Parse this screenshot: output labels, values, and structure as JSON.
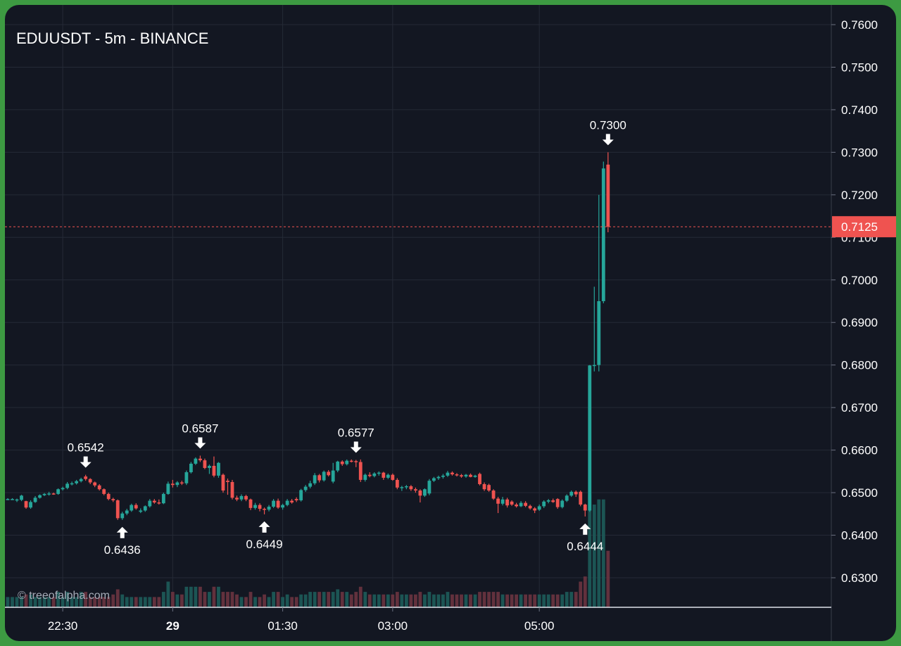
{
  "header": {
    "title": "EDUUSDT - 5m - BINANCE"
  },
  "watermark": "© treeofalpha.com",
  "colors": {
    "background": "#131722",
    "up": "#26a69a",
    "down": "#ef5350",
    "grid": "#252a36",
    "text": "#ffffff",
    "frame": "#3d9a42"
  },
  "chart_data": {
    "type": "candlestick",
    "symbol": "EDUUSDT",
    "interval": "5m",
    "exchange": "BINANCE",
    "ylim": [
      0.6225,
      0.7645
    ],
    "y_ticks": [
      "0.6300",
      "0.6400",
      "0.6500",
      "0.6600",
      "0.6700",
      "0.6800",
      "0.6900",
      "0.7000",
      "0.7100",
      "0.7200",
      "0.7300",
      "0.7400",
      "0.7500",
      "0.7600"
    ],
    "x_ticks": [
      {
        "label": "22:30",
        "bar": 12,
        "bold": false
      },
      {
        "label": "29",
        "bar": 36,
        "bold": true
      },
      {
        "label": "01:30",
        "bar": 60,
        "bold": false
      },
      {
        "label": "03:00",
        "bar": 84,
        "bold": false
      },
      {
        "label": "05:00",
        "bar": 116,
        "bold": false
      }
    ],
    "last_price": {
      "value": 0.7125,
      "label": "0.7125"
    },
    "annotations": [
      {
        "text": "0.6542",
        "bar": 17,
        "price": 0.6542,
        "type": "high"
      },
      {
        "text": "0.6436",
        "bar": 25,
        "price": 0.6436,
        "type": "low"
      },
      {
        "text": "0.6587",
        "bar": 42,
        "price": 0.6587,
        "type": "high"
      },
      {
        "text": "0.6449",
        "bar": 56,
        "price": 0.6449,
        "type": "low"
      },
      {
        "text": "0.6577",
        "bar": 76,
        "price": 0.6577,
        "type": "high"
      },
      {
        "text": "0.6444",
        "bar": 126,
        "price": 0.6444,
        "type": "low"
      },
      {
        "text": "0.7300",
        "bar": 131,
        "price": 0.73,
        "type": "high"
      }
    ],
    "candles": [
      [
        0.6485,
        0.6487,
        0.6483,
        0.6485,
        0.2
      ],
      [
        0.6485,
        0.6487,
        0.6483,
        0.6485,
        0.2
      ],
      [
        0.6482,
        0.6486,
        0.6478,
        0.6484,
        0.2
      ],
      [
        0.6483,
        0.6495,
        0.648,
        0.6493,
        0.2
      ],
      [
        0.648,
        0.6481,
        0.6462,
        0.6465,
        0.25
      ],
      [
        0.6465,
        0.6482,
        0.6462,
        0.6478,
        0.25
      ],
      [
        0.6478,
        0.6492,
        0.6476,
        0.6488,
        0.2
      ],
      [
        0.6488,
        0.6496,
        0.6486,
        0.6494,
        0.2
      ],
      [
        0.6494,
        0.6499,
        0.6492,
        0.6497,
        0.2
      ],
      [
        0.6497,
        0.6502,
        0.6493,
        0.6498,
        0.2
      ],
      [
        0.6498,
        0.65,
        0.6495,
        0.6497,
        0.2
      ],
      [
        0.6497,
        0.651,
        0.6495,
        0.6508,
        0.3
      ],
      [
        0.6508,
        0.6514,
        0.6505,
        0.6511,
        0.2
      ],
      [
        0.6511,
        0.6525,
        0.6508,
        0.6521,
        0.3
      ],
      [
        0.6521,
        0.6526,
        0.6517,
        0.6522,
        0.2
      ],
      [
        0.6522,
        0.653,
        0.6519,
        0.6527,
        0.2
      ],
      [
        0.6527,
        0.6535,
        0.6524,
        0.6532,
        0.3
      ],
      [
        0.6538,
        0.6542,
        0.6528,
        0.6532,
        0.3
      ],
      [
        0.6532,
        0.6534,
        0.652,
        0.6524,
        0.2
      ],
      [
        0.6524,
        0.6526,
        0.6513,
        0.6517,
        0.2
      ],
      [
        0.6517,
        0.652,
        0.6505,
        0.6508,
        0.2
      ],
      [
        0.6508,
        0.651,
        0.6494,
        0.6497,
        0.2
      ],
      [
        0.6497,
        0.65,
        0.6482,
        0.6485,
        0.2
      ],
      [
        0.6485,
        0.6488,
        0.6478,
        0.6482,
        0.25
      ],
      [
        0.6482,
        0.6484,
        0.6436,
        0.644,
        0.35
      ],
      [
        0.644,
        0.6455,
        0.6436,
        0.6451,
        0.25
      ],
      [
        0.6451,
        0.6462,
        0.6447,
        0.6458,
        0.2
      ],
      [
        0.6458,
        0.6474,
        0.6455,
        0.6471,
        0.2
      ],
      [
        0.6471,
        0.6475,
        0.646,
        0.6463,
        0.2
      ],
      [
        0.6455,
        0.6463,
        0.6452,
        0.6458,
        0.2
      ],
      [
        0.6458,
        0.647,
        0.6455,
        0.6468,
        0.2
      ],
      [
        0.6468,
        0.6485,
        0.6465,
        0.6481,
        0.2
      ],
      [
        0.6481,
        0.6485,
        0.6474,
        0.6477,
        0.2
      ],
      [
        0.6477,
        0.6484,
        0.6472,
        0.6475,
        0.2
      ],
      [
        0.6475,
        0.65,
        0.6473,
        0.6497,
        0.3
      ],
      [
        0.6497,
        0.6526,
        0.6495,
        0.6521,
        0.5
      ],
      [
        0.6521,
        0.653,
        0.6512,
        0.6518,
        0.3
      ],
      [
        0.6518,
        0.6527,
        0.6513,
        0.6524,
        0.25
      ],
      [
        0.6524,
        0.6528,
        0.6518,
        0.6522,
        0.25
      ],
      [
        0.6522,
        0.6552,
        0.6518,
        0.6548,
        0.4
      ],
      [
        0.6548,
        0.6572,
        0.6545,
        0.6568,
        0.4
      ],
      [
        0.6568,
        0.6583,
        0.6565,
        0.658,
        0.4
      ],
      [
        0.658,
        0.6587,
        0.6572,
        0.6576,
        0.4
      ],
      [
        0.6576,
        0.658,
        0.6555,
        0.6558,
        0.3
      ],
      [
        0.6558,
        0.6566,
        0.6544,
        0.6563,
        0.3
      ],
      [
        0.6563,
        0.6585,
        0.6536,
        0.654,
        0.4
      ],
      [
        0.654,
        0.6572,
        0.6535,
        0.657,
        0.4
      ],
      [
        0.6542,
        0.6545,
        0.65,
        0.6505,
        0.3
      ],
      [
        0.6528,
        0.6533,
        0.6495,
        0.6525,
        0.3
      ],
      [
        0.6525,
        0.653,
        0.6484,
        0.6488,
        0.3
      ],
      [
        0.6488,
        0.6493,
        0.648,
        0.6484,
        0.25
      ],
      [
        0.6484,
        0.6496,
        0.648,
        0.6492,
        0.2
      ],
      [
        0.6492,
        0.6495,
        0.648,
        0.6484,
        0.2
      ],
      [
        0.6484,
        0.6486,
        0.6459,
        0.6464,
        0.3
      ],
      [
        0.6464,
        0.6476,
        0.646,
        0.6471,
        0.2
      ],
      [
        0.6471,
        0.6475,
        0.6456,
        0.6462,
        0.2
      ],
      [
        0.6462,
        0.6465,
        0.6449,
        0.646,
        0.25
      ],
      [
        0.646,
        0.6471,
        0.6456,
        0.6467,
        0.2
      ],
      [
        0.6467,
        0.6485,
        0.6464,
        0.6481,
        0.3
      ],
      [
        0.6481,
        0.6486,
        0.6462,
        0.6465,
        0.3
      ],
      [
        0.6465,
        0.6474,
        0.646,
        0.6471,
        0.2
      ],
      [
        0.6471,
        0.6485,
        0.6468,
        0.6481,
        0.25
      ],
      [
        0.6481,
        0.6485,
        0.6474,
        0.6477,
        0.2
      ],
      [
        0.6485,
        0.6489,
        0.6478,
        0.6482,
        0.2
      ],
      [
        0.6482,
        0.6509,
        0.6479,
        0.6506,
        0.25
      ],
      [
        0.6506,
        0.6518,
        0.6502,
        0.6514,
        0.25
      ],
      [
        0.6514,
        0.6528,
        0.651,
        0.6522,
        0.3
      ],
      [
        0.6522,
        0.6546,
        0.6518,
        0.6541,
        0.3
      ],
      [
        0.6541,
        0.6544,
        0.6524,
        0.6529,
        0.3
      ],
      [
        0.6529,
        0.6552,
        0.6526,
        0.6549,
        0.3
      ],
      [
        0.6549,
        0.6553,
        0.6538,
        0.6541,
        0.3
      ],
      [
        0.6526,
        0.657,
        0.6522,
        0.6552,
        0.3
      ],
      [
        0.6552,
        0.6575,
        0.6548,
        0.6573,
        0.35
      ],
      [
        0.6573,
        0.6576,
        0.6563,
        0.6567,
        0.3
      ],
      [
        0.6567,
        0.6578,
        0.6564,
        0.6575,
        0.3
      ],
      [
        0.6575,
        0.6578,
        0.6571,
        0.6574,
        0.25
      ],
      [
        0.6574,
        0.6577,
        0.656,
        0.6572,
        0.3
      ],
      [
        0.6572,
        0.6578,
        0.6525,
        0.653,
        0.4
      ],
      [
        0.653,
        0.6545,
        0.6526,
        0.6542,
        0.3
      ],
      [
        0.6542,
        0.6548,
        0.6536,
        0.6539,
        0.25
      ],
      [
        0.6539,
        0.6548,
        0.6536,
        0.6545,
        0.25
      ],
      [
        0.6545,
        0.655,
        0.654,
        0.6547,
        0.25
      ],
      [
        0.6547,
        0.6549,
        0.653,
        0.6535,
        0.25
      ],
      [
        0.6535,
        0.6545,
        0.6532,
        0.6542,
        0.25
      ],
      [
        0.6542,
        0.6545,
        0.6528,
        0.653,
        0.25
      ],
      [
        0.653,
        0.6534,
        0.6508,
        0.6512,
        0.3
      ],
      [
        0.6512,
        0.6516,
        0.6504,
        0.6513,
        0.25
      ],
      [
        0.6513,
        0.6518,
        0.6508,
        0.6515,
        0.25
      ],
      [
        0.6515,
        0.6518,
        0.6504,
        0.6508,
        0.25
      ],
      [
        0.6508,
        0.6512,
        0.65,
        0.6505,
        0.25
      ],
      [
        0.6505,
        0.6508,
        0.6477,
        0.6493,
        0.3
      ],
      [
        0.6493,
        0.651,
        0.649,
        0.6508,
        0.25
      ],
      [
        0.6498,
        0.6532,
        0.6494,
        0.6528,
        0.3
      ],
      [
        0.6528,
        0.6537,
        0.6525,
        0.6534,
        0.25
      ],
      [
        0.6534,
        0.654,
        0.653,
        0.6537,
        0.25
      ],
      [
        0.6537,
        0.6544,
        0.6533,
        0.654,
        0.25
      ],
      [
        0.654,
        0.6551,
        0.6537,
        0.6547,
        0.3
      ],
      [
        0.6547,
        0.655,
        0.654,
        0.6543,
        0.25
      ],
      [
        0.6543,
        0.6546,
        0.6538,
        0.6541,
        0.25
      ],
      [
        0.6541,
        0.6544,
        0.6535,
        0.6538,
        0.25
      ],
      [
        0.6538,
        0.6544,
        0.6535,
        0.6542,
        0.25
      ],
      [
        0.6542,
        0.6545,
        0.6536,
        0.6537,
        0.25
      ],
      [
        0.6537,
        0.6542,
        0.6535,
        0.654,
        0.25
      ],
      [
        0.6544,
        0.6547,
        0.6517,
        0.652,
        0.3
      ],
      [
        0.652,
        0.6524,
        0.6504,
        0.6508,
        0.3
      ],
      [
        0.6518,
        0.6521,
        0.6502,
        0.6505,
        0.3
      ],
      [
        0.6505,
        0.6508,
        0.6483,
        0.6486,
        0.3
      ],
      [
        0.6486,
        0.649,
        0.6452,
        0.6474,
        0.3
      ],
      [
        0.6474,
        0.649,
        0.647,
        0.6484,
        0.25
      ],
      [
        0.6484,
        0.6488,
        0.6465,
        0.647,
        0.25
      ],
      [
        0.6479,
        0.6482,
        0.6469,
        0.6472,
        0.25
      ],
      [
        0.6472,
        0.6476,
        0.6465,
        0.6468,
        0.25
      ],
      [
        0.6468,
        0.648,
        0.6466,
        0.6476,
        0.25
      ],
      [
        0.6476,
        0.648,
        0.6466,
        0.6469,
        0.25
      ],
      [
        0.6469,
        0.6472,
        0.646,
        0.6463,
        0.25
      ],
      [
        0.6463,
        0.6466,
        0.6452,
        0.6458,
        0.25
      ],
      [
        0.646,
        0.6472,
        0.6457,
        0.6468,
        0.25
      ],
      [
        0.6468,
        0.6482,
        0.6464,
        0.6479,
        0.25
      ],
      [
        0.6479,
        0.6485,
        0.6475,
        0.6482,
        0.25
      ],
      [
        0.6482,
        0.6486,
        0.6476,
        0.6478,
        0.25
      ],
      [
        0.6485,
        0.6487,
        0.6462,
        0.6466,
        0.25
      ],
      [
        0.6466,
        0.6484,
        0.6463,
        0.6481,
        0.25
      ],
      [
        0.6481,
        0.6496,
        0.6478,
        0.6493,
        0.3
      ],
      [
        0.6493,
        0.6505,
        0.649,
        0.6502,
        0.3
      ],
      [
        0.6502,
        0.6505,
        0.649,
        0.6496,
        0.3
      ],
      [
        0.6502,
        0.6505,
        0.6468,
        0.6472,
        0.5
      ],
      [
        0.6472,
        0.6474,
        0.6444,
        0.6458,
        0.6
      ],
      [
        0.6458,
        0.68,
        0.6455,
        0.6799,
        2.2
      ],
      [
        0.6799,
        0.6984,
        0.6785,
        0.68,
        2.0
      ],
      [
        0.68,
        0.72,
        0.6785,
        0.695,
        2.1
      ],
      [
        0.695,
        0.7278,
        0.6945,
        0.7262,
        2.1
      ],
      [
        0.7271,
        0.73,
        0.7112,
        0.7125,
        1.1
      ]
    ]
  }
}
